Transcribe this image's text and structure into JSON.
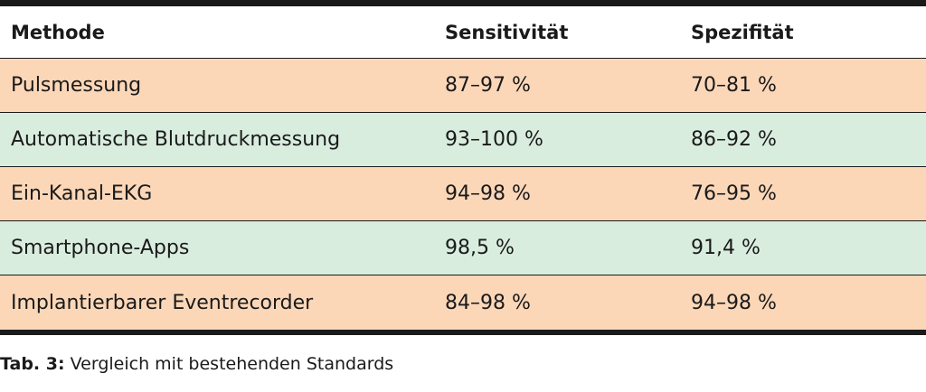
{
  "table": {
    "headers": [
      "Methode",
      "Sensitivität",
      "Spezifität"
    ],
    "rows": [
      {
        "method": "Pulsmessung",
        "sensitivity": "87–97 %",
        "specificity": "70–81 %",
        "color": "#fbd7b8"
      },
      {
        "method": "Automatische Blutdruckmessung",
        "sensitivity": "93–100 %",
        "specificity": "86–92 %",
        "color": "#d9eddf"
      },
      {
        "method": "Ein-Kanal-EKG",
        "sensitivity": "94–98 %",
        "specificity": "76–95 %",
        "color": "#fbd7b8"
      },
      {
        "method": "Smartphone-Apps",
        "sensitivity": "98,5 %",
        "specificity": "91,4 %",
        "color": "#d9eddf"
      },
      {
        "method": "Implantierbarer Eventrecorder",
        "sensitivity": "84–98 %",
        "specificity": "94–98 %",
        "color": "#fbd7b8"
      }
    ]
  },
  "caption": {
    "label": "Tab. 3:",
    "text": " Vergleich mit bestehenden Standards"
  }
}
